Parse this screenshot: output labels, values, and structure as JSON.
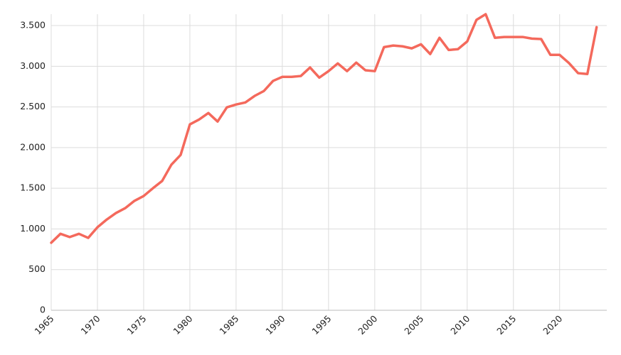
{
  "chart_data": {
    "type": "line",
    "x": [
      1965,
      1966,
      1967,
      1968,
      1969,
      1970,
      1971,
      1972,
      1973,
      1974,
      1975,
      1976,
      1977,
      1978,
      1979,
      1980,
      1981,
      1982,
      1983,
      1984,
      1985,
      1986,
      1987,
      1988,
      1989,
      1990,
      1991,
      1992,
      1993,
      1994,
      1995,
      1996,
      1997,
      1998,
      1999,
      2000,
      2001,
      2002,
      2003,
      2004,
      2005,
      2006,
      2007,
      2008,
      2009,
      2010,
      2011,
      2012,
      2013,
      2014,
      2015,
      2016,
      2017,
      2018,
      2019,
      2020,
      2021,
      2022,
      2023,
      2024
    ],
    "series": [
      {
        "color": "#f4695c",
        "values": [
          830,
          940,
          900,
          940,
          890,
          1020,
          1115,
          1195,
          1255,
          1345,
          1405,
          1500,
          1590,
          1790,
          1910,
          2285,
          2345,
          2425,
          2320,
          2495,
          2530,
          2555,
          2635,
          2695,
          2820,
          2870,
          2870,
          2880,
          2985,
          2860,
          2940,
          3035,
          2940,
          3045,
          2950,
          2940,
          3235,
          3255,
          3245,
          3220,
          3270,
          3150,
          3350,
          3200,
          3210,
          3305,
          3570,
          3640,
          3350,
          3360,
          3360,
          3360,
          3340,
          3335,
          3140,
          3140,
          3040,
          2915,
          2905,
          3480
        ]
      }
    ],
    "xlim": [
      1965,
      2025.1
    ],
    "xticks": [
      1965,
      1970,
      1975,
      1980,
      1985,
      1990,
      1995,
      2000,
      2005,
      2010,
      2015,
      2020
    ],
    "ylim": [
      0,
      3640
    ],
    "yticks": [
      0,
      500,
      {
        "value": 1000,
        "label": "1.000"
      },
      {
        "value": 1500,
        "label": "1.500"
      },
      {
        "value": 2000,
        "label": "2.000"
      },
      {
        "value": 2500,
        "label": "2.500"
      },
      {
        "value": 3000,
        "label": "3.000"
      },
      {
        "value": 3500,
        "label": "3.500"
      }
    ],
    "grid": true
  }
}
